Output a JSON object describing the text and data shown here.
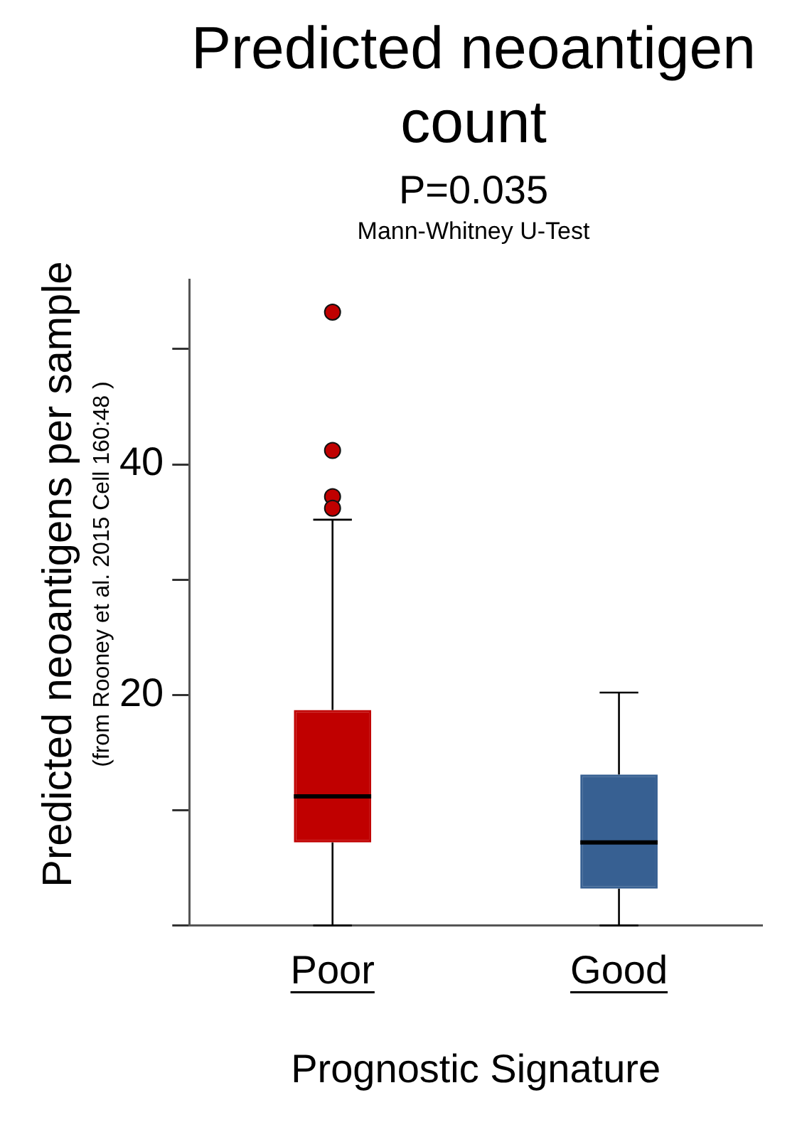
{
  "chart_data": {
    "type": "box",
    "title": "Predicted neoantigen count",
    "subtitle": "P=0.035",
    "annotations": [
      "Mann-Whitney U-Test"
    ],
    "xlabel": "Prognostic Signature",
    "ylabel": "Predicted neoantigens per sample\n(from Rooney et al. 2015 Cell 160:48 )",
    "categories": [
      "Poor",
      "Good"
    ],
    "colors": [
      "#c00000",
      "#376092"
    ],
    "boxes": [
      {
        "low": 0,
        "q1": 7.2,
        "median": 11.2,
        "q3": 18.7,
        "high": 35.2,
        "outliers": [
          53.2,
          41.2,
          37.2,
          36.2
        ]
      },
      {
        "low": 0,
        "q1": 3.2,
        "median": 7.2,
        "q3": 13.1,
        "high": 20.2
      }
    ],
    "ylim": [
      0,
      56
    ],
    "yticks": [
      {
        "value": 0,
        "label": null
      },
      {
        "value": 10,
        "label": null
      },
      20,
      {
        "value": 30,
        "label": null
      },
      40,
      {
        "value": 50,
        "label": null
      }
    ]
  }
}
